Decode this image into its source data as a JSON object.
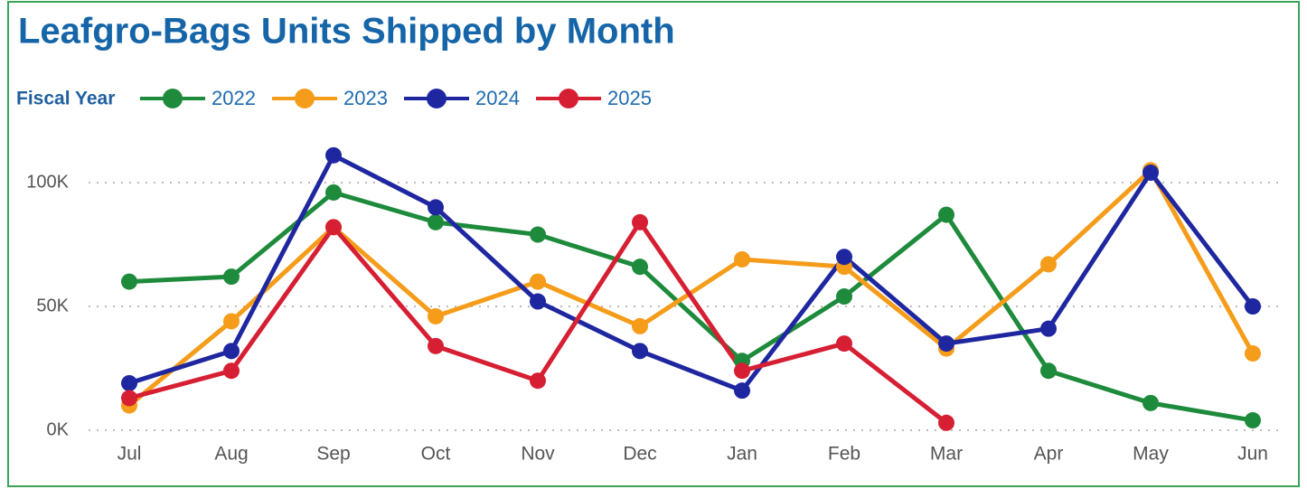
{
  "chart_data": {
    "type": "line",
    "title": "Leafgro-Bags Units Shipped by Month",
    "legend_title": "Fiscal Year",
    "legend_position": "top-left",
    "grid": true,
    "categories": [
      "Jul",
      "Aug",
      "Sep",
      "Oct",
      "Nov",
      "Dec",
      "Jan",
      "Feb",
      "Mar",
      "Apr",
      "May",
      "Jun"
    ],
    "ylim": [
      0,
      120000
    ],
    "yticks": [
      {
        "value": 0,
        "label": "0K"
      },
      {
        "value": 50000,
        "label": "50K"
      },
      {
        "value": 100000,
        "label": "100K"
      }
    ],
    "series": [
      {
        "name": "2022",
        "color": "#1e8a3c",
        "values": [
          60000,
          62000,
          96000,
          84000,
          79000,
          66000,
          28000,
          54000,
          87000,
          24000,
          11000,
          4000
        ]
      },
      {
        "name": "2023",
        "color": "#f59c1a",
        "values": [
          10000,
          44000,
          82000,
          46000,
          60000,
          42000,
          69000,
          66000,
          33000,
          67000,
          105000,
          31000
        ]
      },
      {
        "name": "2024",
        "color": "#1f27a0",
        "values": [
          19000,
          32000,
          111000,
          90000,
          52000,
          32000,
          16000,
          70000,
          35000,
          41000,
          104000,
          50000
        ]
      },
      {
        "name": "2025",
        "color": "#d61f33",
        "values": [
          13000,
          24000,
          82000,
          34000,
          20000,
          84000,
          24000,
          35000,
          3000,
          null,
          null,
          null
        ]
      }
    ]
  }
}
